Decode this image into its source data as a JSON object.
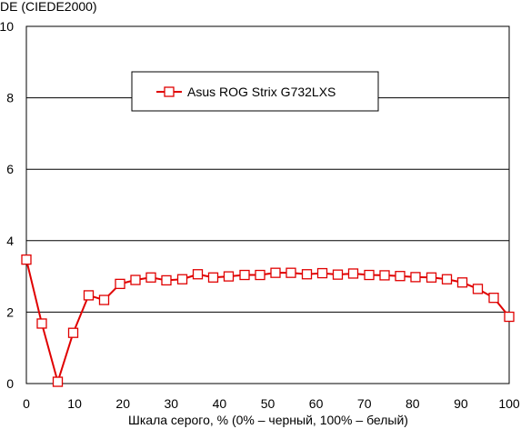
{
  "chart_data": {
    "type": "line",
    "title": "",
    "ylabel": "DE (CIEDE2000)",
    "xlabel": "Шкала серого, % (0% – черный, 100% – белый)",
    "xlim": [
      0,
      100
    ],
    "ylim": [
      0,
      10
    ],
    "x_ticks": [
      "0",
      "10",
      "20",
      "30",
      "40",
      "50",
      "60",
      "70",
      "80",
      "90",
      "100"
    ],
    "y_ticks": [
      "0",
      "2",
      "4",
      "6",
      "8",
      "10"
    ],
    "grid": "horizontal",
    "legend_position": "top-center",
    "series": [
      {
        "name": "Asus ROG Strix G732LXS",
        "color": "#e00000",
        "marker": "square",
        "x": [
          0,
          3.2,
          6.5,
          9.7,
          12.9,
          16.1,
          19.4,
          22.6,
          25.8,
          29.0,
          32.3,
          35.5,
          38.7,
          41.9,
          45.2,
          48.4,
          51.6,
          54.8,
          58.1,
          61.3,
          64.5,
          67.7,
          71.0,
          74.2,
          77.4,
          80.6,
          83.9,
          87.1,
          90.3,
          93.5,
          96.8,
          100
        ],
        "y": [
          3.47,
          1.68,
          0.05,
          1.42,
          2.47,
          2.34,
          2.79,
          2.9,
          2.97,
          2.89,
          2.92,
          3.06,
          2.97,
          3.0,
          3.04,
          3.04,
          3.1,
          3.1,
          3.06,
          3.09,
          3.05,
          3.08,
          3.04,
          3.03,
          3.01,
          2.98,
          2.97,
          2.92,
          2.83,
          2.65,
          2.4,
          1.87
        ]
      }
    ]
  }
}
